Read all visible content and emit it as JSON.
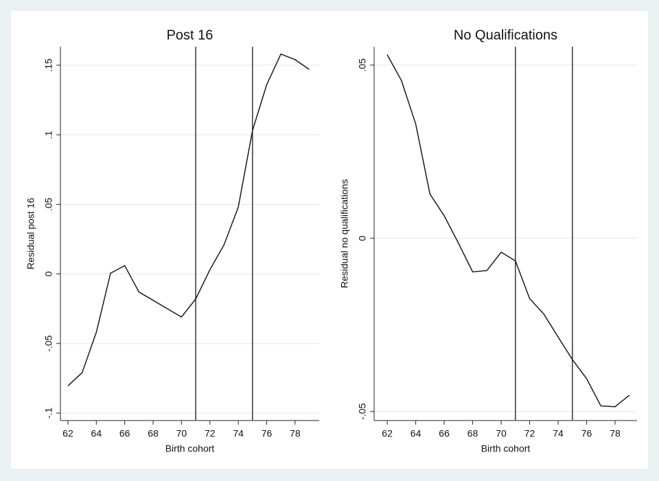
{
  "chart_data": [
    {
      "type": "line",
      "title": "Post 16",
      "x_label": "Birth cohort",
      "y_label": "Residual post 16",
      "x": [
        62,
        63,
        64,
        65,
        66,
        67,
        68,
        69,
        70,
        71,
        72,
        73,
        74,
        75,
        76,
        77,
        78,
        79
      ],
      "series": [
        {
          "color": "#1a1a1a",
          "values": [
            -0.0805,
            -0.071,
            -0.042,
            0.0005,
            0.006,
            -0.013,
            -0.019,
            -0.025,
            -0.031,
            -0.018,
            0.003,
            0.021,
            0.048,
            0.103,
            0.136,
            0.158,
            0.154,
            0.147
          ]
        }
      ],
      "xlim": [
        61.47,
        79.7
      ],
      "ylim": [
        -0.1054,
        0.1633
      ],
      "xticks": [
        62,
        64,
        66,
        68,
        70,
        72,
        74,
        76,
        78
      ],
      "yticks": [
        {
          "value": -0.1,
          "label": "-.1"
        },
        {
          "value": -0.05,
          "label": "-.05"
        },
        0,
        {
          "value": 0.05,
          "label": ".05"
        },
        {
          "value": 0.1,
          "label": ".1"
        },
        {
          "value": 0.15,
          "label": ".15"
        }
      ],
      "xlines": [
        71,
        75
      ],
      "grid": true
    },
    {
      "type": "line",
      "title": "No Qualifications",
      "x_label": "Birth cohort",
      "y_label": "Residual no qualifications",
      "x": [
        62,
        63,
        64,
        65,
        66,
        67,
        68,
        69,
        70,
        71,
        72,
        73,
        74,
        75,
        76,
        77,
        78,
        79
      ],
      "series": [
        {
          "color": "#1a1a1a",
          "values": [
            0.053,
            0.0455,
            0.033,
            0.0128,
            0.0065,
            -0.0014,
            -0.0097,
            -0.0093,
            -0.004,
            -0.0065,
            -0.0174,
            -0.0219,
            -0.0285,
            -0.035,
            -0.0405,
            -0.0484,
            -0.0486,
            -0.0453
          ]
        }
      ],
      "xlim": [
        61.08,
        79.54
      ],
      "ylim": [
        -0.0526,
        0.0553
      ],
      "xticks": [
        62,
        64,
        66,
        68,
        70,
        72,
        74,
        76,
        78
      ],
      "yticks": [
        {
          "value": -0.05,
          "label": "-.05"
        },
        0,
        {
          "value": 0.05,
          "label": ".05"
        }
      ],
      "xlines": [
        71,
        75
      ],
      "grid": true
    }
  ]
}
